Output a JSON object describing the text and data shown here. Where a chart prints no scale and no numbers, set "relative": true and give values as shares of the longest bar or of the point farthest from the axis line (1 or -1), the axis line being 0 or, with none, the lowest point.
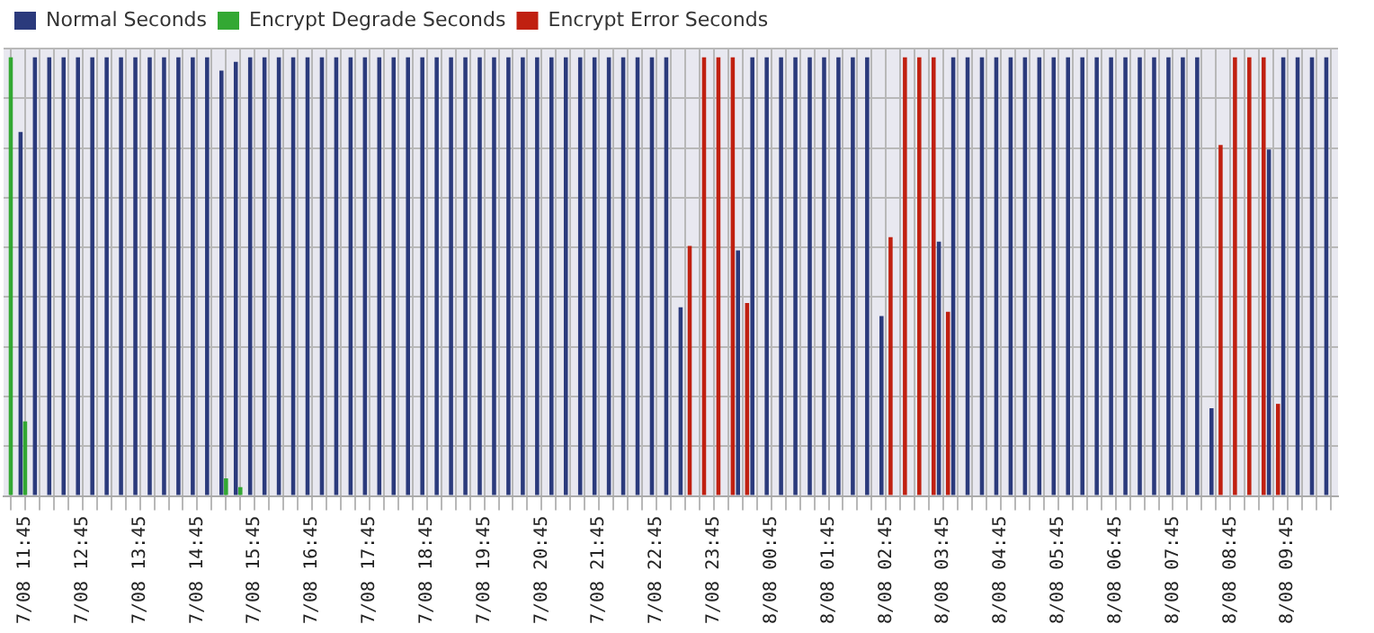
{
  "chart_data": {
    "type": "bar",
    "relative": true,
    "grid": true,
    "legend": "top",
    "categories": [
      null,
      "7/08 11:45",
      null,
      null,
      null,
      "7/08 12:45",
      null,
      null,
      null,
      "7/08 13:45",
      null,
      null,
      null,
      "7/08 14:45",
      null,
      null,
      null,
      "7/08 15:45",
      null,
      null,
      null,
      "7/08 16:45",
      null,
      null,
      null,
      "7/08 17:45",
      null,
      null,
      null,
      "7/08 18:45",
      null,
      null,
      null,
      "7/08 19:45",
      null,
      null,
      null,
      "7/08 20:45",
      null,
      null,
      null,
      "7/08 21:45",
      null,
      null,
      null,
      "7/08 22:45",
      null,
      null,
      null,
      "7/08 23:45",
      null,
      null,
      null,
      "8/08 00:45",
      null,
      null,
      null,
      "8/08 01:45",
      null,
      null,
      null,
      "8/08 02:45",
      null,
      null,
      null,
      "8/08 03:45",
      null,
      null,
      null,
      "8/08 04:45",
      null,
      null,
      null,
      "8/08 05:45",
      null,
      null,
      null,
      "8/08 06:45",
      null,
      null,
      null,
      "8/08 07:45",
      null,
      null,
      null,
      "8/08 08:45",
      null,
      null,
      null,
      "8/08 09:45",
      null,
      null,
      null
    ],
    "series": [
      {
        "name": "Normal Seconds",
        "color": "#2b3a7c",
        "values": [
          null,
          0.83,
          1,
          1,
          1,
          1,
          1,
          1,
          1,
          1,
          1,
          1,
          1,
          1,
          1,
          0.97,
          0.99,
          1,
          1,
          1,
          1,
          1,
          1,
          1,
          1,
          1,
          1,
          1,
          1,
          1,
          1,
          1,
          1,
          1,
          1,
          1,
          1,
          1,
          1,
          1,
          1,
          1,
          1,
          1,
          1,
          1,
          1,
          0.43,
          0,
          0,
          0,
          0.56,
          1,
          1,
          1,
          1,
          1,
          1,
          1,
          1,
          1,
          0.41,
          0,
          0,
          0,
          0.58,
          1,
          1,
          1,
          1,
          1,
          1,
          1,
          1,
          1,
          1,
          1,
          1,
          1,
          1,
          1,
          1,
          1,
          1,
          0.2,
          0,
          0,
          0,
          0.79,
          1,
          1,
          1,
          1
        ]
      },
      {
        "name": "Encrypt Degrade Seconds",
        "color": "#33a833",
        "values": [
          1,
          0.17,
          0,
          0,
          0,
          0,
          0,
          0,
          0,
          0,
          0,
          0,
          0,
          0,
          0,
          0.04,
          0.02,
          0,
          0,
          0,
          0,
          0,
          0,
          0,
          0,
          0,
          0,
          0,
          0,
          0,
          0,
          0,
          0,
          0,
          0,
          0,
          0,
          0,
          0,
          0,
          0,
          0,
          0,
          0,
          0,
          0,
          0,
          0,
          0,
          0,
          0,
          0,
          0,
          0,
          0,
          0,
          0,
          0,
          0,
          0,
          0,
          0,
          0,
          0,
          0,
          0,
          0,
          0,
          0,
          0,
          0,
          0,
          0,
          0,
          0,
          0,
          0,
          0,
          0,
          0,
          0,
          0,
          0,
          0,
          0,
          0,
          0,
          0,
          0,
          0,
          0,
          0,
          0
        ]
      },
      {
        "name": "Encrypt Error Seconds",
        "color": "#c02010",
        "values": [
          0,
          0,
          0,
          0,
          0,
          0,
          0,
          0,
          0,
          0,
          0,
          0,
          0,
          0,
          0,
          0,
          0,
          0,
          0,
          0,
          0,
          0,
          0,
          0,
          0,
          0,
          0,
          0,
          0,
          0,
          0,
          0,
          0,
          0,
          0,
          0,
          0,
          0,
          0,
          0,
          0,
          0,
          0,
          0,
          0,
          0,
          0,
          0.57,
          1,
          1,
          1,
          0.44,
          0,
          0,
          0,
          0,
          0,
          0,
          0,
          0,
          0,
          0.59,
          1,
          1,
          1,
          0.42,
          0,
          0,
          0,
          0,
          0,
          0,
          0,
          0,
          0,
          0,
          0,
          0,
          0,
          0,
          0,
          0,
          0,
          0,
          0.8,
          1,
          1,
          1,
          0.21,
          0,
          0,
          0,
          0
        ]
      }
    ]
  }
}
